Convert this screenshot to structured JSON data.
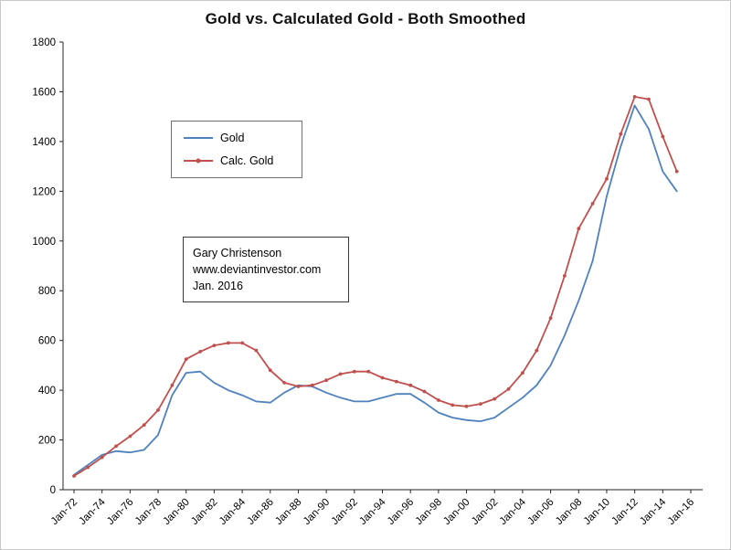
{
  "annotation": {
    "lines": [
      "Gary Christenson",
      "www.deviantinvestor.com",
      "Jan. 2016"
    ]
  },
  "chart_data": {
    "type": "line",
    "title": "Gold vs. Calculated Gold - Both Smoothed",
    "x_start_year": 1972,
    "x_step_years": 1,
    "x_axis_end_year": 2016,
    "xtick_labels": [
      "Jan-72",
      "Jan-74",
      "Jan-76",
      "Jan-78",
      "Jan-80",
      "Jan-82",
      "Jan-84",
      "Jan-86",
      "Jan-88",
      "Jan-90",
      "Jan-92",
      "Jan-94",
      "Jan-96",
      "Jan-98",
      "Jan-00",
      "Jan-02",
      "Jan-04",
      "Jan-06",
      "Jan-08",
      "Jan-10",
      "Jan-12",
      "Jan-14",
      "Jan-16"
    ],
    "ylim": [
      0,
      1800
    ],
    "ytick_step": 200,
    "grid": false,
    "legend_position": "upper-left-inside",
    "series": [
      {
        "name": "Gold",
        "color": "#4F81BD",
        "marker": false,
        "values": [
          60,
          100,
          140,
          155,
          150,
          160,
          220,
          380,
          470,
          475,
          430,
          400,
          380,
          355,
          350,
          390,
          420,
          415,
          390,
          370,
          355,
          355,
          370,
          385,
          385,
          350,
          310,
          290,
          280,
          275,
          290,
          330,
          370,
          420,
          500,
          620,
          760,
          920,
          1180,
          1380,
          1545,
          1450,
          1280,
          1200
        ]
      },
      {
        "name": "Calc. Gold",
        "color": "#C0504D",
        "marker": true,
        "values": [
          55,
          90,
          130,
          175,
          215,
          260,
          320,
          420,
          525,
          555,
          580,
          590,
          590,
          560,
          480,
          430,
          415,
          420,
          440,
          465,
          475,
          475,
          450,
          435,
          420,
          395,
          360,
          340,
          335,
          345,
          365,
          405,
          470,
          560,
          690,
          860,
          1050,
          1150,
          1250,
          1430,
          1580,
          1570,
          1420,
          1280
        ]
      }
    ]
  }
}
